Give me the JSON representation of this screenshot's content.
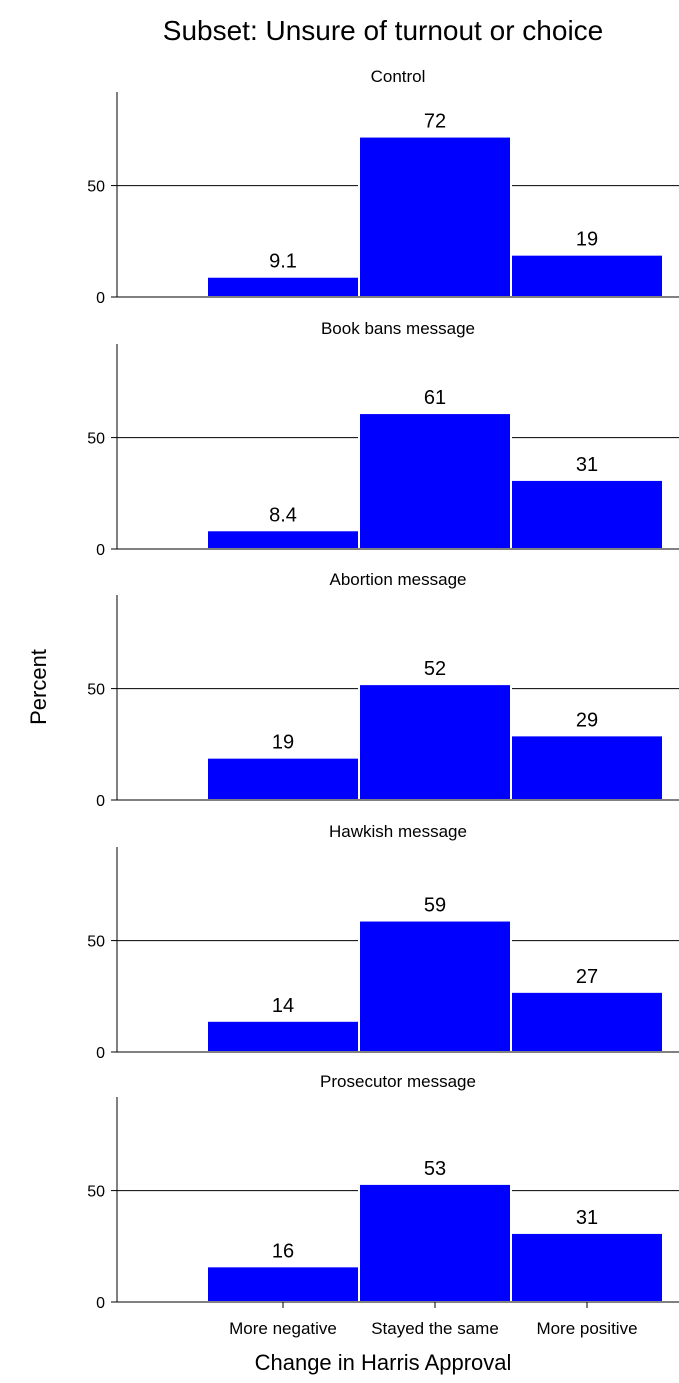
{
  "chart_data": {
    "type": "bar",
    "title": "Subset: Unsure of turnout or choice",
    "xlabel": "Change in Harris Approval",
    "ylabel": "Percent",
    "categories": [
      "More negative",
      "Stayed the same",
      "More positive"
    ],
    "ylim": [
      0,
      92
    ],
    "yticks": [
      0,
      50
    ],
    "grid": true,
    "bar_color": "#0000ff",
    "bar_edge_color": "#ffffff",
    "panels": [
      {
        "name": "Control",
        "values": [
          9.1,
          72,
          19
        ],
        "labels": [
          "9.1",
          "72",
          "19"
        ]
      },
      {
        "name": "Book bans message",
        "values": [
          8.4,
          61,
          31
        ],
        "labels": [
          "8.4",
          "61",
          "31"
        ]
      },
      {
        "name": "Abortion message",
        "values": [
          19,
          52,
          29
        ],
        "labels": [
          "19",
          "52",
          "29"
        ]
      },
      {
        "name": "Hawkish message",
        "values": [
          14,
          59,
          27
        ],
        "labels": [
          "14",
          "59",
          "27"
        ]
      },
      {
        "name": "Prosecutor message",
        "values": [
          16,
          53,
          31
        ],
        "labels": [
          "16",
          "53",
          "31"
        ]
      }
    ]
  }
}
